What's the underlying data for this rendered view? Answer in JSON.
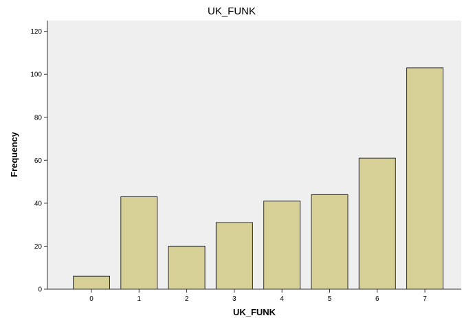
{
  "chart_data": {
    "type": "bar",
    "title": "UK_FUNK",
    "xlabel": "UK_FUNK",
    "ylabel": "Frequency",
    "categories": [
      "0",
      "1",
      "2",
      "3",
      "4",
      "5",
      "6",
      "7"
    ],
    "values": [
      6,
      43,
      20,
      31,
      41,
      44,
      61,
      103
    ],
    "ylim": [
      0,
      125
    ],
    "yticks": [
      "0",
      "20",
      "40",
      "60",
      "80",
      "100",
      "120"
    ],
    "grid": false,
    "legend": "none",
    "colors": {
      "bar_fill": "#d6cf96",
      "bar_stroke": "#2b2b2b",
      "plot_background": "#efefef",
      "axis": "#333333"
    }
  }
}
